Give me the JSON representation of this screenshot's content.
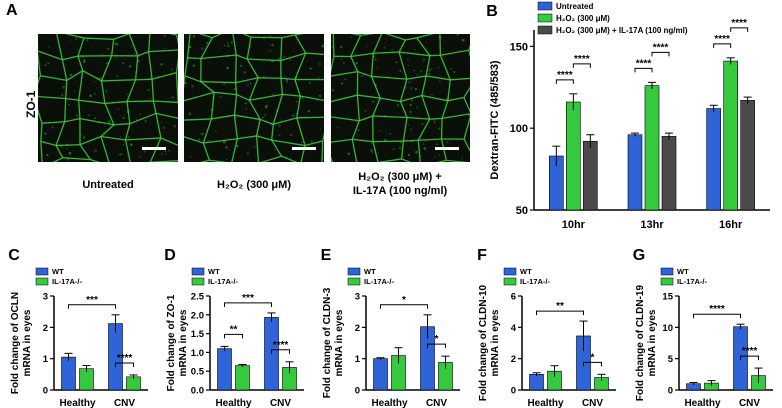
{
  "panel_a": {
    "letter": "A",
    "row_label": "ZO-1",
    "captions": [
      {
        "line1": "Untreated",
        "line2": ""
      },
      {
        "line1": "H₂O₂ (300 μM)",
        "line2": ""
      },
      {
        "line1": "H₂O₂ (300 μM) +",
        "line2": "IL-17A (100 ng/ml)"
      }
    ],
    "colors": {
      "membrane": "#3ed13a",
      "background": "#0a0f0a",
      "scalebar": "#ffffff"
    }
  },
  "chart_data": [
    {
      "panel": "B",
      "type": "bar",
      "ylabel": "Dextran-FITC (485/583)",
      "ylim": [
        50,
        160
      ],
      "yticks": [
        50,
        100,
        150
      ],
      "categories": [
        "10hr",
        "13hr",
        "16hr"
      ],
      "legend_position": "top-right",
      "series": [
        {
          "name": "Untreated",
          "color": "#2f63d8",
          "values": [
            83,
            96,
            112
          ],
          "errors": [
            6,
            1,
            2
          ]
        },
        {
          "name": "H₂O₂ (300 μM)",
          "color": "#35c93d",
          "values": [
            116,
            126,
            141
          ],
          "errors": [
            5,
            2,
            2
          ]
        },
        {
          "name": "H₂O₂ (300 μM) + IL-17A (100 ng/ml)",
          "color": "#4a4a4a",
          "values": [
            92,
            95,
            117
          ],
          "errors": [
            4,
            2,
            2
          ]
        }
      ],
      "annotations": [
        {
          "group": 0,
          "from": 0,
          "to": 1,
          "label": "****"
        },
        {
          "group": 0,
          "from": 1,
          "to": 2,
          "label": "****"
        },
        {
          "group": 1,
          "from": 0,
          "to": 1,
          "label": "****"
        },
        {
          "group": 1,
          "from": 1,
          "to": 2,
          "label": "****"
        },
        {
          "group": 2,
          "from": 0,
          "to": 1,
          "label": "****"
        },
        {
          "group": 2,
          "from": 1,
          "to": 2,
          "label": "****"
        }
      ]
    },
    {
      "panel": "C",
      "type": "bar",
      "ylabel_line1": "Fold change of OCLN",
      "ylabel_line2": "mRNA in eyes",
      "ylim": [
        0,
        3
      ],
      "yticks": [
        0,
        1,
        2,
        3
      ],
      "categories": [
        "Healthy",
        "CNV"
      ],
      "series": [
        {
          "name": "WT",
          "color": "#2f63d8",
          "values": [
            1.05,
            2.12
          ],
          "errors": [
            0.12,
            0.28
          ]
        },
        {
          "name": "IL-17A-/-",
          "color": "#35c93d",
          "values": [
            0.68,
            0.42
          ],
          "errors": [
            0.1,
            0.06
          ]
        }
      ],
      "annotations": [
        {
          "type": "across",
          "label": "***"
        },
        {
          "type": "within",
          "label": "****"
        }
      ]
    },
    {
      "panel": "D",
      "type": "bar",
      "ylabel_line1": "Fold change of ZO-1",
      "ylabel_line2": "mRNA in eyes",
      "ylim": [
        0,
        2.5
      ],
      "yticks": [
        0.0,
        0.5,
        1.0,
        1.5,
        2.0,
        2.5
      ],
      "categories": [
        "Healthy",
        "CNV"
      ],
      "series": [
        {
          "name": "WT",
          "color": "#2f63d8",
          "values": [
            1.1,
            1.93
          ],
          "errors": [
            0.06,
            0.12
          ]
        },
        {
          "name": "IL-17A-/-",
          "color": "#35c93d",
          "values": [
            0.65,
            0.6
          ],
          "errors": [
            0.03,
            0.15
          ]
        }
      ],
      "annotations": [
        {
          "type": "healthy",
          "label": "**"
        },
        {
          "type": "across",
          "label": "***"
        },
        {
          "type": "within",
          "label": "****"
        }
      ]
    },
    {
      "panel": "E",
      "type": "bar",
      "ylabel_line1": "Fold change of CLDN-3",
      "ylabel_line2": "mRNA in eyes",
      "ylim": [
        0,
        3
      ],
      "yticks": [
        0,
        1,
        2,
        3
      ],
      "categories": [
        "Healthy",
        "CNV"
      ],
      "series": [
        {
          "name": "WT",
          "color": "#2f63d8",
          "values": [
            1.0,
            2.02
          ],
          "errors": [
            0.03,
            0.38
          ]
        },
        {
          "name": "IL-17A-/-",
          "color": "#35c93d",
          "values": [
            1.1,
            0.88
          ],
          "errors": [
            0.25,
            0.2
          ]
        }
      ],
      "annotations": [
        {
          "type": "across",
          "label": "*"
        },
        {
          "type": "within",
          "label": "*"
        }
      ]
    },
    {
      "panel": "F",
      "type": "bar",
      "ylabel_line1": "Fold change of CLDN-10",
      "ylabel_line2": "mRNA in eyes",
      "ylim": [
        0,
        6
      ],
      "yticks": [
        0,
        2,
        4,
        6
      ],
      "categories": [
        "Healthy",
        "CNV"
      ],
      "series": [
        {
          "name": "WT",
          "color": "#2f63d8",
          "values": [
            1.0,
            3.45
          ],
          "errors": [
            0.1,
            0.95
          ]
        },
        {
          "name": "IL-17A-/-",
          "color": "#35c93d",
          "values": [
            1.2,
            0.8
          ],
          "errors": [
            0.35,
            0.2
          ]
        }
      ],
      "annotations": [
        {
          "type": "across",
          "label": "**"
        },
        {
          "type": "within",
          "label": "*"
        }
      ]
    },
    {
      "panel": "G",
      "type": "bar",
      "ylabel_line1": "Fold change of CLDN-19",
      "ylabel_line2": "mRNA in eyes",
      "ylim": [
        0,
        15
      ],
      "yticks": [
        0,
        5,
        10,
        15
      ],
      "categories": [
        "Healthy",
        "CNV"
      ],
      "series": [
        {
          "name": "WT",
          "color": "#2f63d8",
          "values": [
            1.0,
            10.1
          ],
          "errors": [
            0.2,
            0.4
          ]
        },
        {
          "name": "IL-17A-/-",
          "color": "#35c93d",
          "values": [
            1.1,
            2.3
          ],
          "errors": [
            0.4,
            1.2
          ]
        }
      ],
      "annotations": [
        {
          "type": "across",
          "label": "****"
        },
        {
          "type": "within",
          "label": "****"
        }
      ]
    }
  ]
}
